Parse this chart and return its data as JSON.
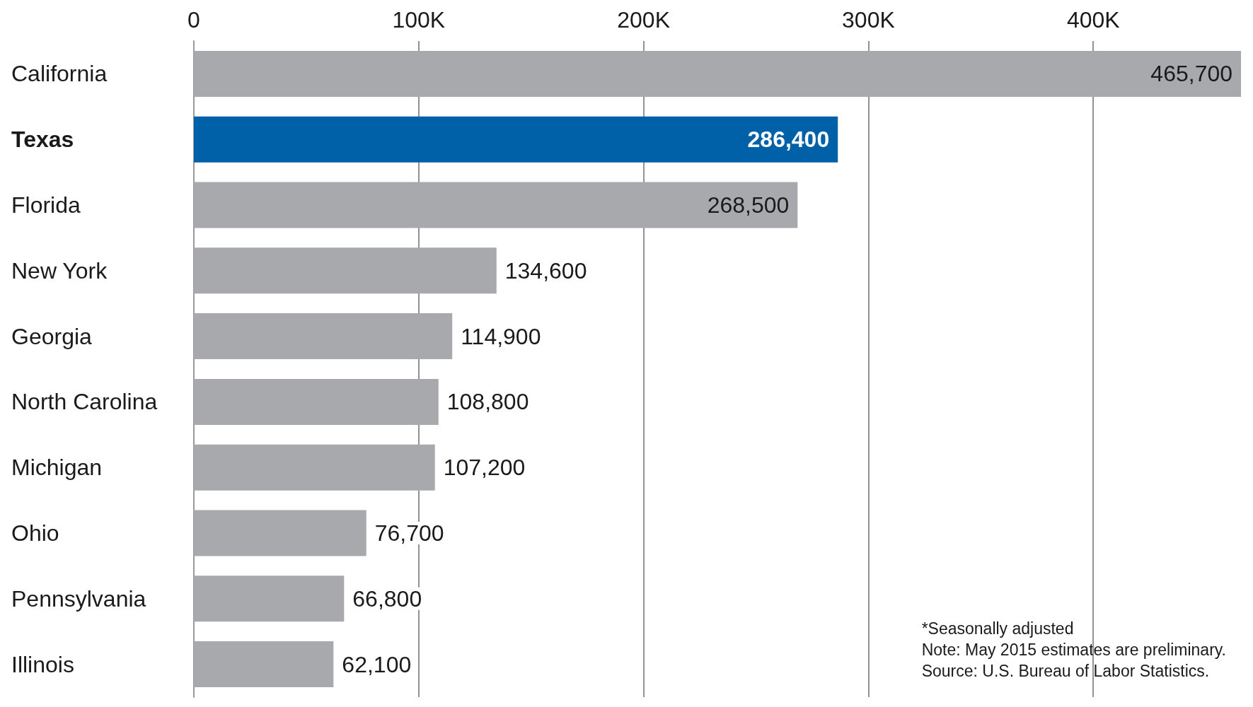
{
  "chart_data": {
    "type": "bar",
    "orientation": "horizontal",
    "categories": [
      "California",
      "Texas",
      "Florida",
      "New York",
      "Georgia",
      "North Carolina",
      "Michigan",
      "Ohio",
      "Pennsylvania",
      "Illinois"
    ],
    "values": [
      465700,
      286400,
      268500,
      134600,
      114900,
      108800,
      107200,
      76700,
      66800,
      62100
    ],
    "colors": [
      "#a7a9ac",
      "#0061a8",
      "#a7a9ac",
      "#a7a9ac",
      "#a7a9ac",
      "#a7a9ac",
      "#a7a9ac",
      "#a7a9ac",
      "#a7a9ac",
      "#a7a9ac"
    ],
    "value_labels": [
      "465,700",
      "286,400",
      "268,500",
      "134,600",
      "114,900",
      "108,800",
      "107,200",
      "76,700",
      "66,800",
      "62,100"
    ],
    "xlim": [
      0,
      466000
    ],
    "xticks": [
      0,
      {
        "value": 100000,
        "label": "100K"
      },
      {
        "value": 200000,
        "label": "200K"
      },
      {
        "value": 300000,
        "label": "300K"
      },
      {
        "value": 400000,
        "label": "400K"
      }
    ],
    "grid": "x",
    "annotations": [
      "*Seasonally adjusted",
      "Note: May 2015 estimates are preliminary.",
      "Source: U.S. Bureau of Labor Statistics."
    ]
  }
}
